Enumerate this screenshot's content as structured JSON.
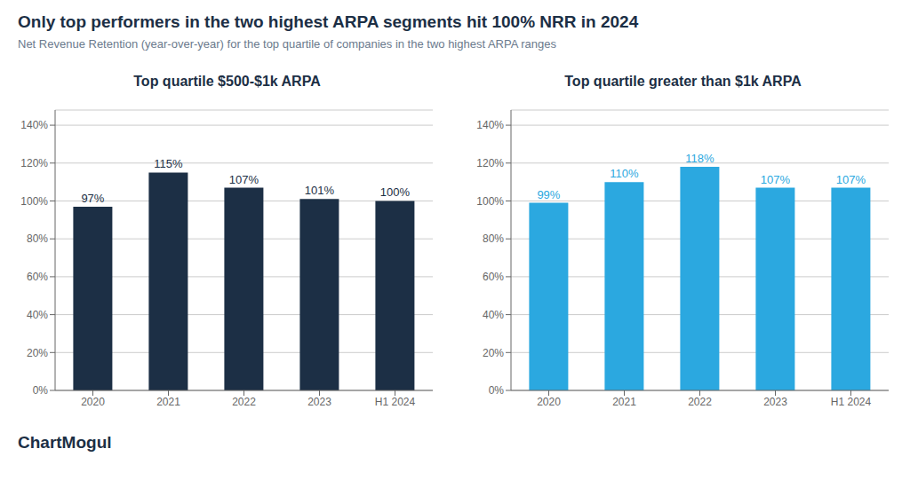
{
  "title": "Only top performers in the two highest ARPA segments hit 100% NRR in 2024",
  "subtitle": "Net Revenue Retention (year-over-year) for the top quartile of companies in the two highest ARPA ranges",
  "annotations": [
    "ChartMogul"
  ],
  "chart_data": [
    {
      "type": "bar",
      "title": "Top quartile $500-$1k ARPA",
      "categories": [
        "2020",
        "2021",
        "2022",
        "2023",
        "H1 2024"
      ],
      "values": [
        97,
        115,
        107,
        101,
        100
      ],
      "value_labels": [
        "97%",
        "115%",
        "107%",
        "101%",
        "100%"
      ],
      "color": "#1c2f45",
      "ylim": [
        0,
        148
      ],
      "yticks": [
        {
          "value": 0,
          "label": "0%"
        },
        {
          "value": 20,
          "label": "20%"
        },
        {
          "value": 40,
          "label": "40%"
        },
        {
          "value": 60,
          "label": "60%"
        },
        {
          "value": 80,
          "label": "80%"
        },
        {
          "value": 100,
          "label": "100%"
        },
        {
          "value": 120,
          "label": "120%"
        },
        {
          "value": 140,
          "label": "140%"
        }
      ],
      "grid": true,
      "data_labels": true
    },
    {
      "type": "bar",
      "title": "Top quartile greater than $1k ARPA",
      "categories": [
        "2020",
        "2021",
        "2022",
        "2023",
        "H1 2024"
      ],
      "values": [
        99,
        110,
        118,
        107,
        107
      ],
      "value_labels": [
        "99%",
        "110%",
        "118%",
        "107%",
        "107%"
      ],
      "color": "#2ba8e0",
      "ylim": [
        0,
        148
      ],
      "yticks": [
        {
          "value": 0,
          "label": "0%"
        },
        {
          "value": 20,
          "label": "20%"
        },
        {
          "value": 40,
          "label": "40%"
        },
        {
          "value": 60,
          "label": "60%"
        },
        {
          "value": 80,
          "label": "80%"
        },
        {
          "value": 100,
          "label": "100%"
        },
        {
          "value": 120,
          "label": "120%"
        },
        {
          "value": 140,
          "label": "140%"
        }
      ],
      "grid": true,
      "data_labels": true
    }
  ]
}
